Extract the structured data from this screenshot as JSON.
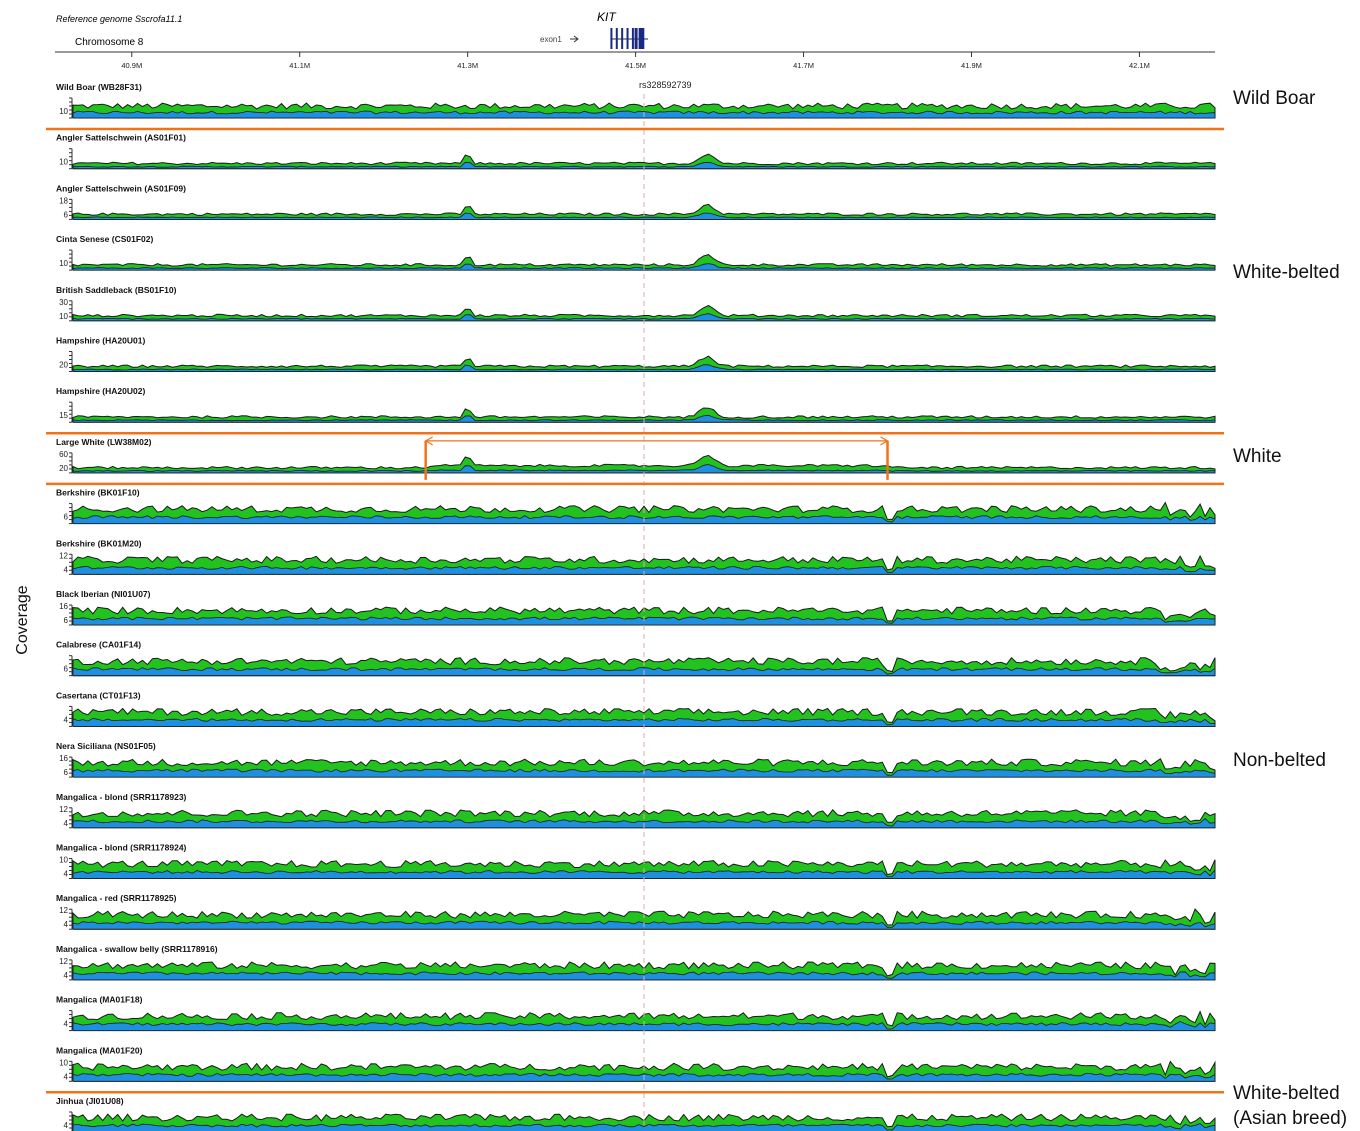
{
  "header": {
    "reference": "Reference genome Sscrofa11.1",
    "chromosome": "Chromosome 8",
    "gene": "KIT",
    "exon": "exon1",
    "snp": "rs328592739"
  },
  "chart_data": {
    "type": "area",
    "ylabel": "Coverage",
    "x_axis": {
      "unit": "Mb",
      "range": [
        40.83,
        42.19
      ],
      "ticks": [
        {
          "pos": 40.9,
          "label": "40.9M"
        },
        {
          "pos": 41.1,
          "label": "41.1M"
        },
        {
          "pos": 41.3,
          "label": "41.3M"
        },
        {
          "pos": 41.5,
          "label": "41.5M"
        },
        {
          "pos": 41.7,
          "label": "41.7M"
        },
        {
          "pos": 41.9,
          "label": "41.9M"
        },
        {
          "pos": 42.1,
          "label": "42.1M"
        }
      ]
    },
    "snp_position": 41.51,
    "kit_gene": {
      "start": 41.47,
      "end": 41.51
    },
    "white_interval": {
      "start": 41.25,
      "end": 41.8
    },
    "tracks": [
      {
        "name": "Wild Boar (WB28F31)",
        "yticks": [
          "10"
        ],
        "style": "wild",
        "bold": true
      },
      {
        "name": "Angler Sattelschwein (AS01F01)",
        "yticks": [
          "10"
        ],
        "style": "belted",
        "bold": true
      },
      {
        "name": "Angler Sattelschwein (AS01F09)",
        "yticks": [
          "18",
          "6"
        ],
        "style": "belted",
        "bold": true
      },
      {
        "name": "Cinta Senese (CS01F02)",
        "yticks": [
          "10"
        ],
        "style": "belted",
        "bold": true
      },
      {
        "name": "British Saddleback (BS01F10)",
        "yticks": [
          "30",
          "10"
        ],
        "style": "belted",
        "bold": true
      },
      {
        "name": "Hampshire (HA20U01)",
        "yticks": [
          "20"
        ],
        "style": "belted",
        "bold": true
      },
      {
        "name": "Hampshire (HA20U02)",
        "yticks": [
          "15"
        ],
        "style": "belted",
        "bold": true
      },
      {
        "name": "Large White (LW38M02)",
        "yticks": [
          "60",
          "20"
        ],
        "style": "white",
        "bold": false
      },
      {
        "name": "Berkshire (BK01F10)",
        "yticks": [
          "6"
        ],
        "style": "nonbelted",
        "bold": true
      },
      {
        "name": "Berkshire (BK01M20)",
        "yticks": [
          "12",
          "4"
        ],
        "style": "nonbelted",
        "bold": true
      },
      {
        "name": "Black Iberian (NI01U07)",
        "yticks": [
          "16",
          "6"
        ],
        "style": "nonbelted",
        "bold": true
      },
      {
        "name": "Calabrese (CA01F14)",
        "yticks": [
          "6"
        ],
        "style": "nonbelted",
        "bold": true
      },
      {
        "name": "Casertana (CT01F13)",
        "yticks": [
          "4"
        ],
        "style": "nonbelted",
        "bold": true
      },
      {
        "name": "Nera Siciliana (NS01F05)",
        "yticks": [
          "16",
          "6"
        ],
        "style": "nonbelted",
        "bold": true
      },
      {
        "name": "Mangalica - blond (SRR1178923)",
        "yticks": [
          "12",
          "4"
        ],
        "style": "nonbelted",
        "bold": true
      },
      {
        "name": "Mangalica - blond (SRR1178924)",
        "yticks": [
          "10",
          "4"
        ],
        "style": "nonbelted",
        "bold": true
      },
      {
        "name": "Mangalica - red (SRR1178925)",
        "yticks": [
          "12",
          "4"
        ],
        "style": "nonbelted",
        "bold": true
      },
      {
        "name": "Mangalica - swallow belly (SRR1178916)",
        "yticks": [
          "12",
          "4"
        ],
        "style": "nonbelted",
        "bold": true
      },
      {
        "name": "Mangalica (MA01F18)",
        "yticks": [
          "4"
        ],
        "style": "nonbelted",
        "bold": true
      },
      {
        "name": "Mangalica (MA01F20)",
        "yticks": [
          "10",
          "4"
        ],
        "style": "nonbelted",
        "bold": true
      },
      {
        "name": "Jinhua (JI01U08)",
        "yticks": [
          "4"
        ],
        "style": "nonbelted",
        "bold": true
      }
    ],
    "groups": [
      {
        "label": "Wild Boar",
        "tracks": [
          0
        ]
      },
      {
        "label": "White-belted",
        "tracks": [
          1,
          2,
          3,
          4,
          5,
          6
        ]
      },
      {
        "label": "White",
        "tracks": [
          7
        ]
      },
      {
        "label": "Non-belted",
        "tracks": [
          8,
          9,
          10,
          11,
          12,
          13,
          14,
          15,
          16,
          17,
          18,
          19
        ]
      },
      {
        "label": "White-belted",
        "sublabel": "(Asian breed)",
        "tracks": [
          20
        ]
      }
    ],
    "colors": {
      "upper_area": "#22c21f",
      "lower_area": "#1f8fe0",
      "outline": "#1a1a1a",
      "separator": "#f0731a",
      "snp_line": "#e3a9a9",
      "gene": "#1b2a80"
    }
  }
}
